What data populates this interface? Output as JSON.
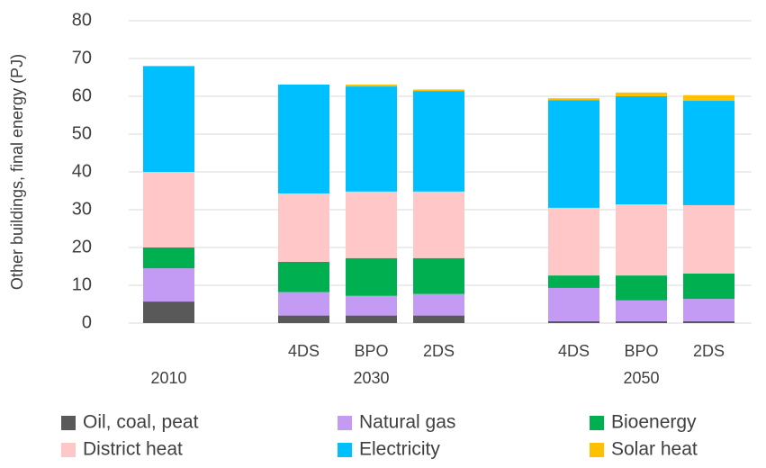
{
  "chart_data": {
    "type": "stacked_bar",
    "y_label": "Other buildings, final energy (PJ)",
    "categories": [
      null,
      null,
      "4DS",
      "BPO",
      "2DS",
      null,
      "4DS",
      "BPO",
      "2DS"
    ],
    "group_labels": [
      "2010",
      null,
      null,
      "2030",
      null,
      null,
      null,
      "2050",
      null
    ],
    "series": [
      {
        "name": "Oil, coal, peat",
        "color": "#595959",
        "values": [
          5.7,
          null,
          2,
          2,
          2,
          null,
          0.5,
          0.5,
          0.5
        ]
      },
      {
        "name": "Natural gas",
        "color": "#c39bf5",
        "values": [
          8.8,
          null,
          6.2,
          5.2,
          5.7,
          null,
          8.8,
          5.5,
          5.9
        ]
      },
      {
        "name": "Bioenergy",
        "color": "#00b050",
        "values": [
          5.5,
          null,
          8,
          10,
          9.5,
          null,
          3.3,
          6.6,
          6.7
        ]
      },
      {
        "name": "District heat",
        "color": "#ffc7c7",
        "values": [
          20,
          null,
          18.1,
          17.6,
          17.6,
          null,
          17.9,
          18.8,
          18.1
        ]
      },
      {
        "name": "Electricity",
        "color": "#00bfff",
        "values": [
          28,
          null,
          28.8,
          27.8,
          26.6,
          null,
          28.5,
          28.6,
          27.6
        ]
      },
      {
        "name": "Solar heat",
        "color": "#ffc000",
        "values": [
          0,
          null,
          0,
          0.5,
          0.4,
          null,
          0.5,
          1,
          1.5
        ]
      }
    ],
    "ylim": [
      0,
      80
    ],
    "yticks": [
      0,
      10,
      20,
      30,
      40,
      50,
      60,
      70,
      80
    ],
    "grid": true,
    "legend": "bottom"
  }
}
